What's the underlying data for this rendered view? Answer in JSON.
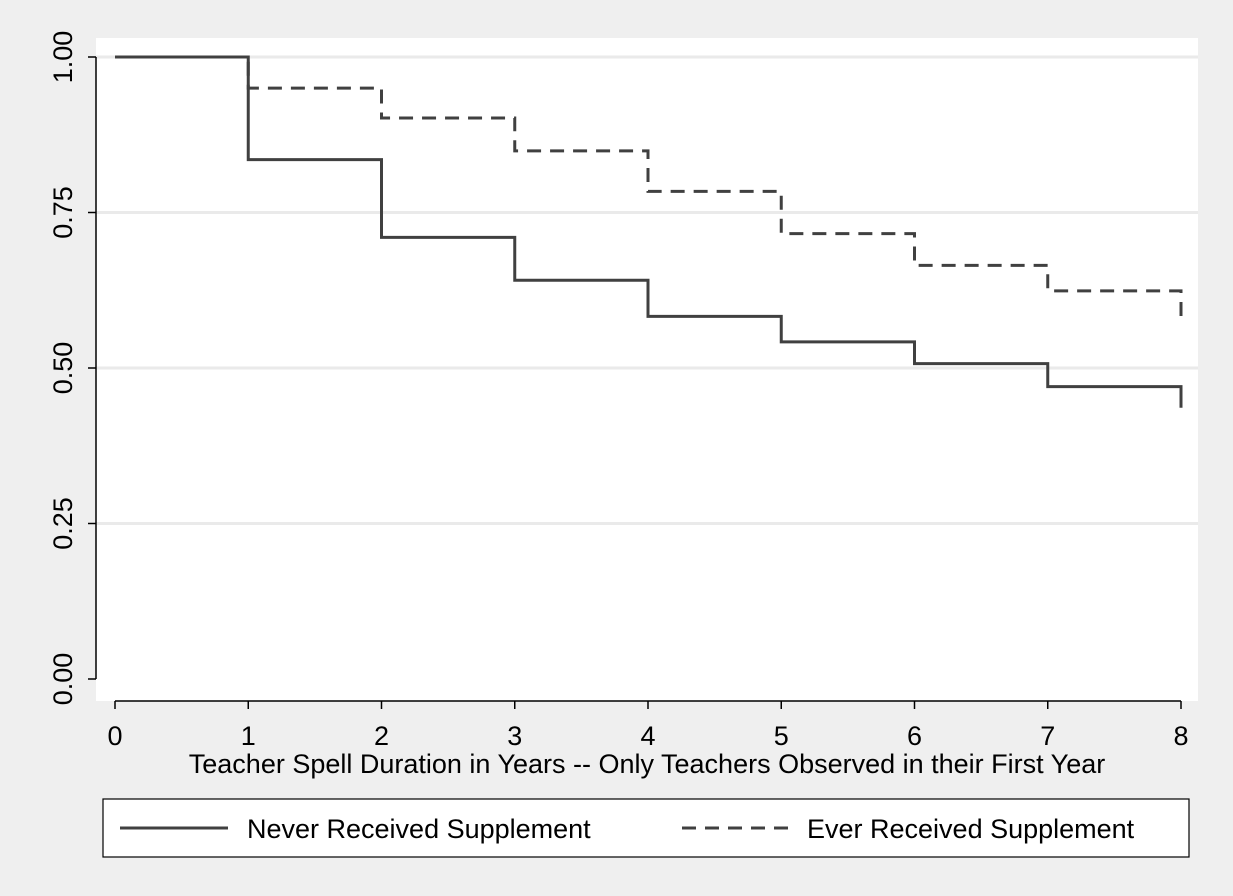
{
  "chart_data": {
    "type": "line",
    "step": true,
    "title": "",
    "xlabel": "Teacher Spell Duration in Years -- Only Teachers Observed in their First Year",
    "ylabel": "",
    "xlim": [
      0,
      8
    ],
    "ylim": [
      0,
      1
    ],
    "x_ticks": [
      0,
      1,
      2,
      3,
      4,
      5,
      6,
      7,
      8
    ],
    "x_tick_labels": [
      "0",
      "1",
      "2",
      "3",
      "4",
      "5",
      "6",
      "7",
      "8"
    ],
    "y_ticks": [
      0,
      0.25,
      0.5,
      0.75,
      1.0
    ],
    "y_tick_labels": [
      "0.00",
      "0.25",
      "0.50",
      "0.75",
      "1.00"
    ],
    "grid": "horizontal",
    "legend_position": "bottom",
    "series": [
      {
        "name": "Never Received Supplement",
        "line_style": "solid",
        "color": "#404040",
        "x": [
          0,
          1,
          2,
          3,
          4,
          5,
          6,
          7,
          8
        ],
        "y": [
          1.0,
          0.835,
          0.71,
          0.641,
          0.583,
          0.542,
          0.507,
          0.47,
          0.436
        ]
      },
      {
        "name": "Ever Received Supplement",
        "line_style": "dashed",
        "color": "#404040",
        "x": [
          0,
          1,
          2,
          3,
          4,
          5,
          6,
          7,
          8
        ],
        "y": [
          1.0,
          0.95,
          0.902,
          0.849,
          0.784,
          0.716,
          0.665,
          0.624,
          0.58
        ]
      }
    ]
  }
}
